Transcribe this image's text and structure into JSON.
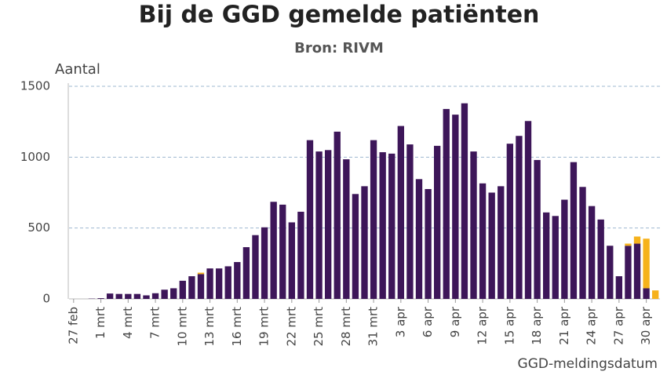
{
  "chart_data": {
    "type": "bar",
    "stacked": true,
    "title": "Bij de GGD gemelde patiënten",
    "subtitle": "Bron: RIVM",
    "y_label": "Aantal",
    "x_label": "GGD-meldingsdatum",
    "categories": [
      "27 feb",
      null,
      null,
      "1 mrt",
      null,
      null,
      "4 mrt",
      null,
      null,
      "7 mrt",
      null,
      null,
      "10 mrt",
      null,
      null,
      "13 mrt",
      null,
      null,
      "16 mrt",
      null,
      null,
      "19 mrt",
      null,
      null,
      "22 mrt",
      null,
      null,
      "25 mrt",
      null,
      null,
      "28 mrt",
      null,
      null,
      "31 mrt",
      null,
      null,
      "3 apr",
      null,
      null,
      "6 apr",
      null,
      null,
      "9 apr",
      null,
      null,
      "12 apr",
      null,
      null,
      "15 apr",
      null,
      null,
      "18 apr",
      null,
      null,
      "21 apr",
      null,
      null,
      "24 apr",
      null,
      null,
      "27 apr",
      null,
      null,
      "30 apr",
      null
    ],
    "series": [
      {
        "color": "#3d1659",
        "values": [
          0,
          0,
          2,
          5,
          38,
          35,
          35,
          35,
          25,
          40,
          65,
          75,
          128,
          160,
          175,
          215,
          215,
          230,
          260,
          365,
          450,
          505,
          685,
          665,
          540,
          615,
          1120,
          1040,
          1050,
          1180,
          985,
          740,
          795,
          1120,
          1035,
          1025,
          1220,
          1090,
          845,
          775,
          1080,
          1340,
          1300,
          1380,
          1040,
          815,
          750,
          795,
          1095,
          1150,
          1255,
          980,
          610,
          585,
          700,
          965,
          790,
          655,
          560,
          375,
          160,
          375,
          390,
          75,
          0
        ]
      },
      {
        "color": "#f6b21b",
        "values": [
          0,
          0,
          0,
          0,
          0,
          0,
          0,
          0,
          0,
          0,
          0,
          0,
          0,
          0,
          10,
          0,
          0,
          0,
          0,
          0,
          0,
          0,
          0,
          0,
          0,
          0,
          0,
          0,
          0,
          0,
          0,
          0,
          0,
          0,
          0,
          0,
          0,
          0,
          0,
          0,
          0,
          0,
          0,
          0,
          0,
          0,
          0,
          0,
          0,
          0,
          0,
          0,
          0,
          0,
          0,
          0,
          0,
          0,
          0,
          0,
          0,
          15,
          50,
          350,
          60
        ]
      }
    ],
    "ylim": [
      0,
      1500
    ],
    "yticks": [
      0,
      500,
      1000,
      1500
    ],
    "grid": true
  }
}
